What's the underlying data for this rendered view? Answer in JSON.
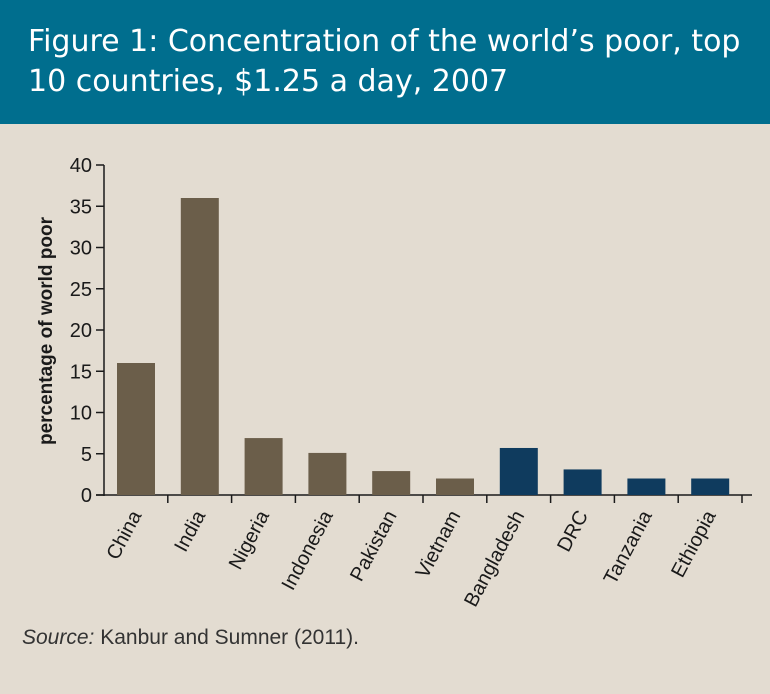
{
  "title": "Figure 1: Concentration of the world’s poor, top 10 countries, $1.25 a day, 2007",
  "source": {
    "label": "Source:",
    "text": "Kanbur and Sumner (2011)."
  },
  "colors": {
    "header_bg": "#006e8e",
    "background": "#e3dcd1",
    "bar_brown": "#6b5e4a",
    "bar_navy": "#0f3b5e"
  },
  "chart_data": {
    "type": "bar",
    "title": "Figure 1: Concentration of the world’s poor, top 10 countries, $1.25 a day, 2007",
    "xlabel": "",
    "ylabel": "percentage of world poor",
    "ylim": [
      0,
      40
    ],
    "yticks": [
      "0",
      "5",
      "10",
      "15",
      "20",
      "25",
      "30",
      "35",
      "40"
    ],
    "grid": false,
    "categories": [
      "China",
      "India",
      "Nigeria",
      "Indonesia",
      "Pakistan",
      "Vietnam",
      "Bangladesh",
      "DRC",
      "Tanzania",
      "Ethiopia"
    ],
    "values": [
      16,
      36,
      6.9,
      5.1,
      2.9,
      2.0,
      5.7,
      3.1,
      2.0,
      2.0
    ],
    "bar_colors": [
      "#6b5e4a",
      "#6b5e4a",
      "#6b5e4a",
      "#6b5e4a",
      "#6b5e4a",
      "#6b5e4a",
      "#0f3b5e",
      "#0f3b5e",
      "#0f3b5e",
      "#0f3b5e"
    ]
  }
}
